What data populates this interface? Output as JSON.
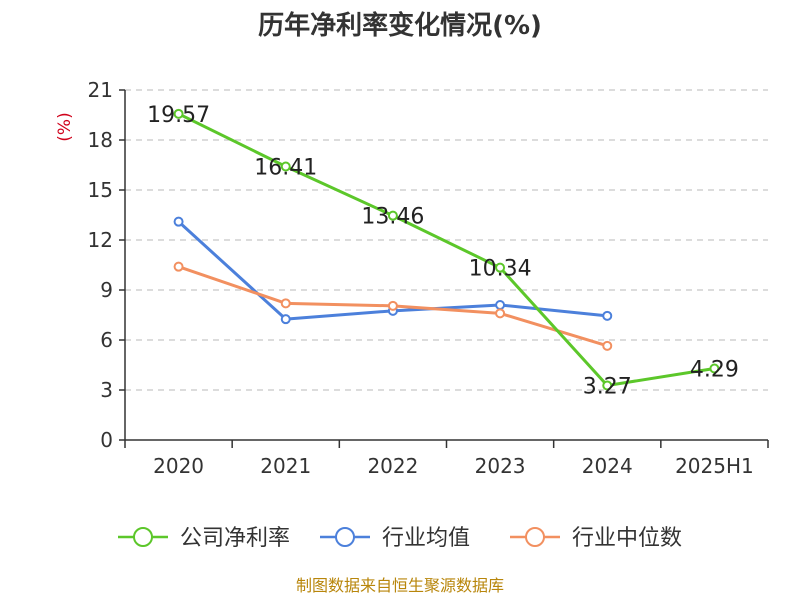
{
  "chart_data": {
    "type": "line",
    "title": "历年净利率变化情况(%)",
    "ylabel": "(%)",
    "categories": [
      "2020",
      "2021",
      "2022",
      "2023",
      "2024",
      "2025H1"
    ],
    "ylim": [
      0,
      21
    ],
    "yticks": [
      0,
      3,
      6,
      9,
      12,
      15,
      18,
      21
    ],
    "grid": true,
    "legend_position": "bottom",
    "series": [
      {
        "name": "公司净利率",
        "color": "#5cc72a",
        "values": [
          19.57,
          16.41,
          13.46,
          10.34,
          3.27,
          4.29
        ],
        "labels": [
          "19.57",
          "16.41",
          "13.46",
          "10.34",
          "3.27",
          "4.29"
        ]
      },
      {
        "name": "行业均值",
        "color": "#4c80db",
        "values": [
          13.1,
          7.25,
          7.75,
          8.1,
          7.45,
          null
        ]
      },
      {
        "name": "行业中位数",
        "color": "#f29060",
        "values": [
          10.4,
          8.2,
          8.05,
          7.6,
          5.65,
          null
        ]
      }
    ]
  },
  "source": "制图数据来自恒生聚源数据库"
}
